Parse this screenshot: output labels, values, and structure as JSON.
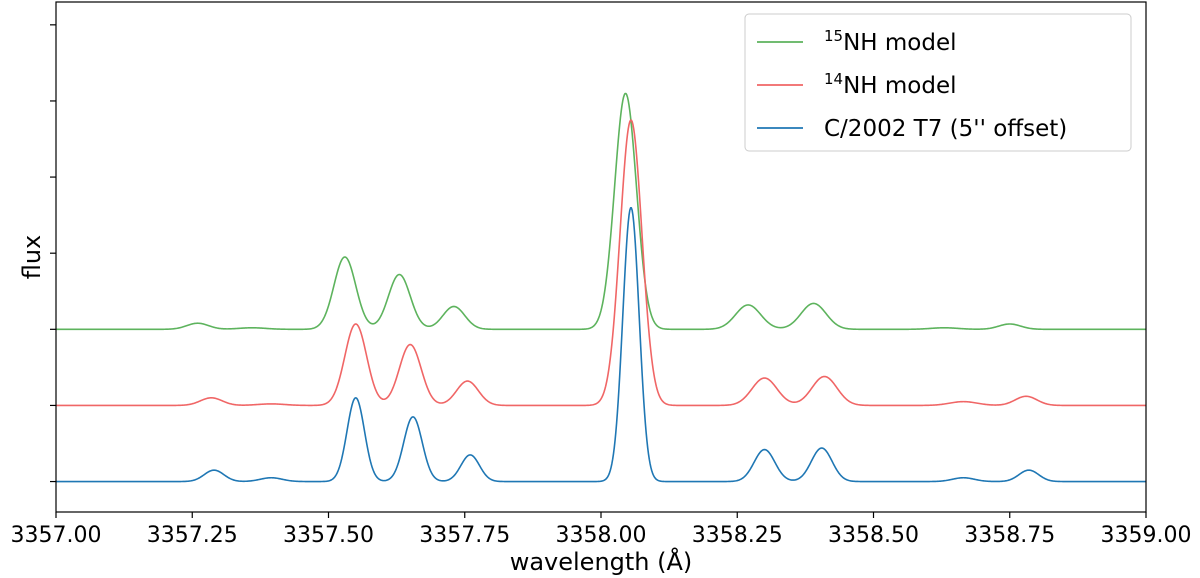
{
  "chart_data": {
    "type": "line",
    "title": "",
    "xlabel": "wavelength (Å)",
    "ylabel": "flux",
    "xlim": [
      3357.0,
      3359.0
    ],
    "x_ticks": [
      3357.0,
      3357.25,
      3357.5,
      3357.75,
      3358.0,
      3358.25,
      3358.5,
      3358.75,
      3359.0
    ],
    "x_tick_labels": [
      "3357.00",
      "3357.25",
      "3357.50",
      "3357.75",
      "3358.00",
      "3358.25",
      "3358.50",
      "3358.75",
      "3359.00"
    ],
    "y_tick_labels_shown": false,
    "grid": false,
    "legend_position": "top-right",
    "series": [
      {
        "name": "15NH model",
        "legend_sup": "15",
        "legend_main": "NH model",
        "color": "#5db35d",
        "linewidth": 1.6,
        "baseline": 0.0,
        "peaks": [
          {
            "x": 3357.26,
            "a": 0.08,
            "w": 0.02
          },
          {
            "x": 3357.36,
            "a": 0.02,
            "w": 0.025
          },
          {
            "x": 3357.53,
            "a": 0.95,
            "w": 0.02
          },
          {
            "x": 3357.63,
            "a": 0.72,
            "w": 0.02
          },
          {
            "x": 3357.73,
            "a": 0.3,
            "w": 0.02
          },
          {
            "x": 3358.045,
            "a": 3.1,
            "w": 0.02
          },
          {
            "x": 3358.27,
            "a": 0.32,
            "w": 0.023
          },
          {
            "x": 3358.39,
            "a": 0.34,
            "w": 0.023
          },
          {
            "x": 3358.63,
            "a": 0.02,
            "w": 0.025
          },
          {
            "x": 3358.75,
            "a": 0.07,
            "w": 0.02
          }
        ]
      },
      {
        "name": "14NH model",
        "legend_sup": "14",
        "legend_main": "NH model",
        "color": "#f06666",
        "linewidth": 1.6,
        "baseline": -1.0,
        "peaks": [
          {
            "x": 3357.285,
            "a": 0.1,
            "w": 0.02
          },
          {
            "x": 3357.395,
            "a": 0.02,
            "w": 0.025
          },
          {
            "x": 3357.55,
            "a": 1.07,
            "w": 0.02
          },
          {
            "x": 3357.65,
            "a": 0.8,
            "w": 0.02
          },
          {
            "x": 3357.755,
            "a": 0.32,
            "w": 0.02
          },
          {
            "x": 3358.055,
            "a": 3.75,
            "w": 0.02
          },
          {
            "x": 3358.3,
            "a": 0.36,
            "w": 0.023
          },
          {
            "x": 3358.41,
            "a": 0.38,
            "w": 0.023
          },
          {
            "x": 3358.665,
            "a": 0.05,
            "w": 0.025
          },
          {
            "x": 3358.78,
            "a": 0.12,
            "w": 0.02
          }
        ]
      },
      {
        "name": "C/2002 T7 (5'' offset)",
        "legend_sup": "",
        "legend_main": "C/2002 T7 (5'' offset)",
        "color": "#1f77b4",
        "linewidth": 1.6,
        "baseline": -2.0,
        "peaks": [
          {
            "x": 3357.29,
            "a": 0.15,
            "w": 0.018
          },
          {
            "x": 3357.395,
            "a": 0.05,
            "w": 0.02
          },
          {
            "x": 3357.55,
            "a": 1.1,
            "w": 0.016
          },
          {
            "x": 3357.655,
            "a": 0.85,
            "w": 0.017
          },
          {
            "x": 3357.76,
            "a": 0.35,
            "w": 0.017
          },
          {
            "x": 3358.055,
            "a": 3.6,
            "w": 0.015
          },
          {
            "x": 3358.3,
            "a": 0.42,
            "w": 0.019
          },
          {
            "x": 3358.405,
            "a": 0.44,
            "w": 0.019
          },
          {
            "x": 3358.665,
            "a": 0.05,
            "w": 0.02
          },
          {
            "x": 3358.785,
            "a": 0.15,
            "w": 0.018
          }
        ]
      }
    ]
  }
}
